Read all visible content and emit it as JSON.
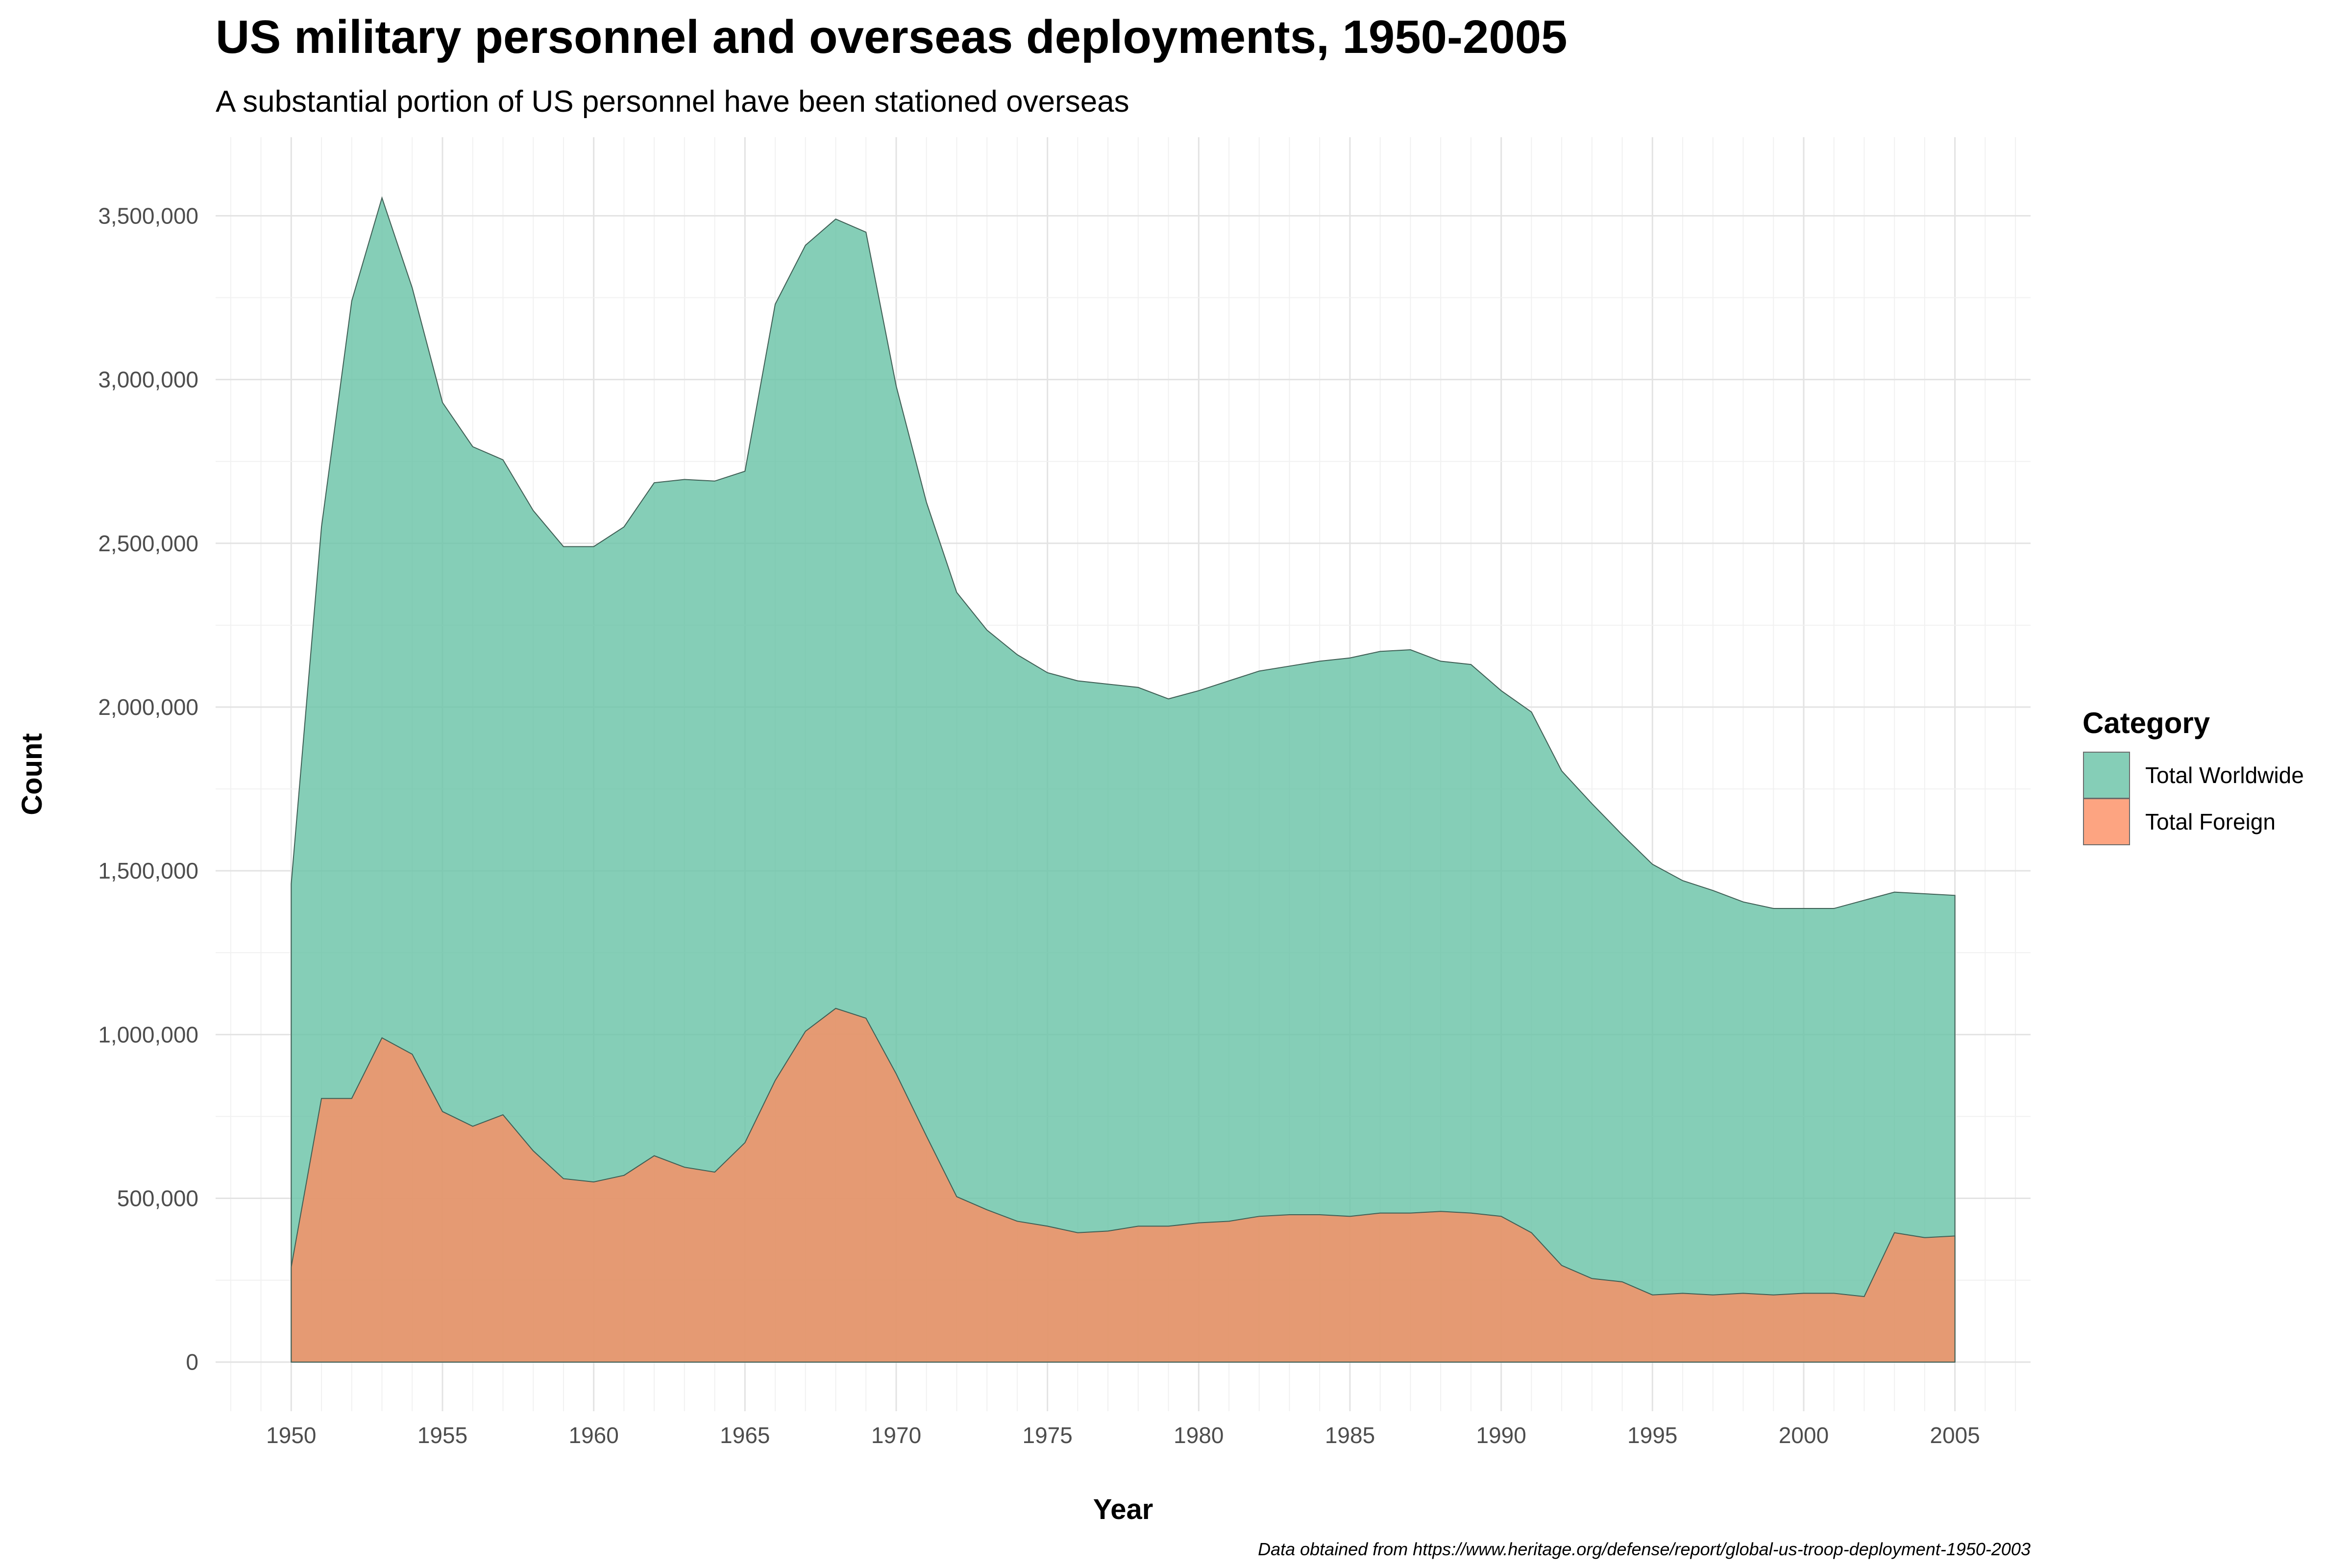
{
  "chart_data": {
    "type": "area",
    "title": "US military personnel and overseas deployments, 1950-2005",
    "subtitle": "A substantial portion of US personnel have been stationed overseas",
    "xlabel": "Year",
    "ylabel": "Count",
    "caption": "Data obtained from https://www.heritage.org/defense/report/global-us-troop-deployment-1950-2003",
    "xlim": [
      1947.5,
      2007.5
    ],
    "ylim": [
      -150000,
      3740000
    ],
    "x_ticks": [
      1950,
      1955,
      1960,
      1965,
      1970,
      1975,
      1980,
      1985,
      1990,
      1995,
      2000,
      2005
    ],
    "y_ticks": [
      0,
      500000,
      1000000,
      1500000,
      2000000,
      2500000,
      3000000,
      3500000
    ],
    "y_tick_labels": [
      "0",
      "500,000",
      "1,000,000",
      "1,500,000",
      "2,000,000",
      "2,500,000",
      "3,000,000",
      "3,500,000"
    ],
    "grid": true,
    "legend": {
      "title": "Category",
      "position": "right"
    },
    "x": [
      1950,
      1951,
      1952,
      1953,
      1954,
      1955,
      1956,
      1957,
      1958,
      1959,
      1960,
      1961,
      1962,
      1963,
      1964,
      1965,
      1966,
      1967,
      1968,
      1969,
      1970,
      1971,
      1972,
      1973,
      1974,
      1975,
      1976,
      1977,
      1978,
      1979,
      1980,
      1981,
      1982,
      1983,
      1984,
      1985,
      1986,
      1987,
      1988,
      1989,
      1990,
      1991,
      1992,
      1993,
      1994,
      1995,
      1996,
      1997,
      1998,
      1999,
      2000,
      2001,
      2002,
      2003,
      2004,
      2005
    ],
    "series": [
      {
        "name": "Total Worldwide",
        "color": "#66c2a5",
        "values": [
          1460000,
          2550000,
          3240000,
          3555000,
          3280000,
          2930000,
          2795000,
          2755000,
          2600000,
          2490000,
          2490000,
          2550000,
          2685000,
          2695000,
          2690000,
          2720000,
          3230000,
          3410000,
          3490000,
          3450000,
          2980000,
          2625000,
          2350000,
          2235000,
          2160000,
          2105000,
          2080000,
          2070000,
          2060000,
          2025000,
          2050000,
          2080000,
          2110000,
          2125000,
          2140000,
          2150000,
          2170000,
          2175000,
          2140000,
          2130000,
          2050000,
          1985000,
          1805000,
          1705000,
          1610000,
          1520000,
          1470000,
          1440000,
          1405000,
          1385000,
          1385000,
          1385000,
          1410000,
          1435000,
          1430000,
          1425000
        ]
      },
      {
        "name": "Total Foreign",
        "color": "#fc8d62",
        "values": [
          290000,
          805000,
          805000,
          990000,
          940000,
          765000,
          720000,
          755000,
          645000,
          560000,
          550000,
          570000,
          630000,
          595000,
          580000,
          670000,
          860000,
          1010000,
          1080000,
          1050000,
          880000,
          690000,
          505000,
          465000,
          430000,
          415000,
          395000,
          400000,
          415000,
          415000,
          425000,
          430000,
          445000,
          450000,
          450000,
          445000,
          455000,
          455000,
          460000,
          455000,
          445000,
          395000,
          295000,
          255000,
          245000,
          205000,
          210000,
          205000,
          210000,
          205000,
          210000,
          210000,
          200000,
          395000,
          380000,
          385000
        ]
      }
    ]
  }
}
